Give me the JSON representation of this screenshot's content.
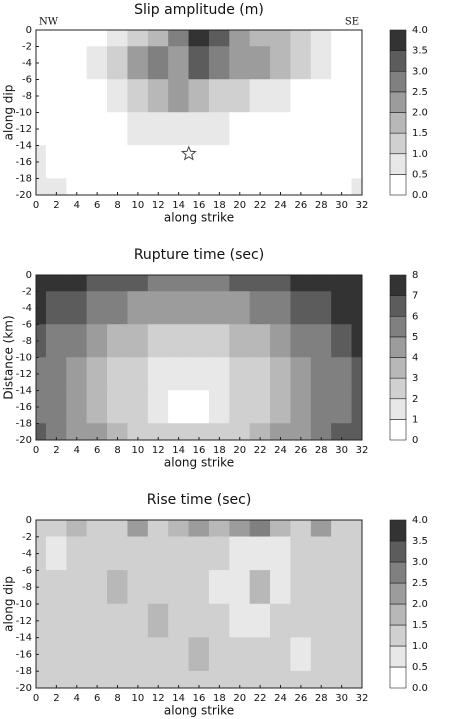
{
  "chart_data": [
    {
      "type": "contour",
      "title": "Slip amplitude (m)",
      "xlabel": "along strike",
      "ylabel": "along dip",
      "annotations": [
        "NW",
        "SE"
      ],
      "hypocenter": {
        "x": 15,
        "y": -15
      },
      "x": [
        0,
        2,
        4,
        6,
        8,
        10,
        12,
        14,
        16,
        18,
        20,
        22,
        24,
        26,
        28,
        30,
        32
      ],
      "y": [
        0,
        -4,
        -8,
        -12,
        -16,
        -20
      ],
      "z": [
        [
          0.3,
          0.2,
          0.2,
          0.4,
          0.6,
          1.0,
          1.5,
          2.5,
          3.5,
          3.0,
          2.0,
          1.5,
          1.5,
          1.0,
          0.6,
          0.4,
          0.3
        ],
        [
          0.2,
          0.2,
          0.3,
          0.6,
          1.0,
          2.0,
          2.5,
          2.0,
          3.0,
          2.5,
          2.0,
          2.0,
          1.5,
          1.0,
          0.5,
          0.3,
          0.2
        ],
        [
          0.1,
          0.1,
          0.2,
          0.3,
          0.6,
          1.0,
          1.5,
          2.0,
          1.5,
          1.0,
          1.0,
          0.8,
          0.5,
          0.3,
          0.2,
          0.1,
          0.1
        ],
        [
          0.1,
          0.1,
          0.1,
          0.2,
          0.3,
          0.6,
          0.6,
          0.6,
          0.8,
          0.6,
          0.4,
          0.3,
          0.2,
          0.1,
          0.1,
          0.1,
          0.1
        ],
        [
          0.6,
          0.2,
          0.1,
          0.1,
          0.1,
          0.2,
          0.3,
          0.2,
          0.2,
          0.1,
          0.1,
          0.1,
          0.1,
          0.1,
          0.1,
          0.1,
          0.1
        ],
        [
          0.6,
          0.6,
          0.3,
          0.1,
          0.1,
          0.1,
          0.1,
          0.1,
          0.1,
          0.1,
          0.1,
          0.1,
          0.1,
          0.1,
          0.1,
          0.2,
          0.6
        ]
      ],
      "xlim": [
        0,
        32
      ],
      "ylim": [
        -20,
        0
      ],
      "xticks": [
        0,
        2,
        4,
        6,
        8,
        10,
        12,
        14,
        16,
        18,
        20,
        22,
        24,
        26,
        28,
        30,
        32
      ],
      "yticks": [
        0,
        -2,
        -4,
        -6,
        -8,
        -10,
        -12,
        -14,
        -16,
        -18,
        -20
      ],
      "cticks": [
        {
          "value": 0,
          "label": "0.0"
        },
        {
          "value": 0.5,
          "label": "0.5"
        },
        {
          "value": 1,
          "label": "1.0"
        },
        {
          "value": 1.5,
          "label": "1.5"
        },
        {
          "value": 2,
          "label": "2.0"
        },
        {
          "value": 2.5,
          "label": "2.5"
        },
        {
          "value": 3,
          "label": "3.0"
        },
        {
          "value": 3.5,
          "label": "3.5"
        },
        {
          "value": 4,
          "label": "4.0"
        }
      ],
      "colors": [
        "#ffffff",
        "#e8e8e8",
        "#d0d0d0",
        "#b8b8b8",
        "#9c9c9c",
        "#808080",
        "#5c5c5c",
        "#333333"
      ]
    },
    {
      "type": "contour",
      "title": "Rupture time (sec)",
      "xlabel": "along strike",
      "ylabel": "Distance (km)",
      "x": [
        0,
        2,
        4,
        6,
        8,
        10,
        12,
        14,
        16,
        18,
        20,
        22,
        24,
        26,
        28,
        30,
        32
      ],
      "y": [
        0,
        -4,
        -8,
        -12,
        -16,
        -20
      ],
      "z": [
        [
          7.9,
          7.6,
          7.1,
          6.7,
          6.4,
          6.1,
          5.9,
          5.8,
          5.8,
          5.9,
          6.1,
          6.4,
          6.7,
          7.1,
          7.6,
          7.9,
          7.9
        ],
        [
          7.1,
          6.5,
          6.0,
          5.5,
          5.0,
          4.7,
          4.4,
          4.2,
          4.2,
          4.4,
          4.7,
          5.0,
          5.5,
          6.0,
          6.5,
          7.1,
          7.8
        ],
        [
          6.4,
          5.7,
          5.0,
          4.4,
          3.8,
          3.3,
          2.9,
          2.7,
          2.7,
          2.9,
          3.3,
          3.8,
          4.4,
          5.0,
          5.7,
          6.4,
          7.1
        ],
        [
          5.9,
          5.1,
          4.4,
          3.7,
          2.9,
          2.2,
          1.6,
          1.2,
          1.2,
          1.6,
          2.2,
          2.9,
          3.7,
          4.4,
          5.1,
          5.9,
          6.6
        ],
        [
          5.8,
          5.0,
          4.2,
          3.5,
          2.7,
          2.0,
          1.2,
          0.5,
          0.5,
          1.2,
          2.0,
          2.7,
          3.5,
          4.2,
          5.0,
          5.8,
          6.5
        ],
        [
          6.1,
          5.3,
          4.7,
          4.0,
          3.3,
          2.7,
          2.2,
          2.0,
          2.0,
          2.2,
          2.7,
          3.3,
          4.0,
          4.7,
          5.3,
          6.1,
          6.8
        ]
      ],
      "xlim": [
        0,
        32
      ],
      "ylim": [
        -20,
        0
      ],
      "xticks": [
        0,
        2,
        4,
        6,
        8,
        10,
        12,
        14,
        16,
        18,
        20,
        22,
        24,
        26,
        28,
        30,
        32
      ],
      "yticks": [
        0,
        -2,
        -4,
        -6,
        -8,
        -10,
        -12,
        -14,
        -16,
        -18,
        -20
      ],
      "cticks": [
        0,
        1,
        2,
        3,
        4,
        5,
        6,
        7,
        8
      ],
      "colors": [
        "#ffffff",
        "#e8e8e8",
        "#d0d0d0",
        "#b8b8b8",
        "#9c9c9c",
        "#808080",
        "#5c5c5c",
        "#333333"
      ]
    },
    {
      "type": "contour",
      "title": "Rise time (sec)",
      "xlabel": "along strike",
      "ylabel": "along dip",
      "x": [
        0,
        2,
        4,
        6,
        8,
        10,
        12,
        14,
        16,
        18,
        20,
        22,
        24,
        26,
        28,
        30,
        32
      ],
      "y": [
        0,
        -4,
        -8,
        -12,
        -16,
        -20
      ],
      "z": [
        [
          1.2,
          1.2,
          1.7,
          1.2,
          1.2,
          2.0,
          1.2,
          1.7,
          2.2,
          1.7,
          2.2,
          2.7,
          1.7,
          1.2,
          2.0,
          1.2,
          1.2
        ],
        [
          1.2,
          0.7,
          1.2,
          1.2,
          1.2,
          1.2,
          1.2,
          1.2,
          1.2,
          1.2,
          0.7,
          0.7,
          0.7,
          1.2,
          1.2,
          1.2,
          1.2
        ],
        [
          1.2,
          1.2,
          1.2,
          1.2,
          1.7,
          1.2,
          1.2,
          1.2,
          1.2,
          0.7,
          0.7,
          1.7,
          0.7,
          1.2,
          1.2,
          1.2,
          1.2
        ],
        [
          1.2,
          1.2,
          1.2,
          1.2,
          1.2,
          1.2,
          1.7,
          1.2,
          1.2,
          1.2,
          0.7,
          0.7,
          1.2,
          1.2,
          1.2,
          1.2,
          1.2
        ],
        [
          1.2,
          1.2,
          1.2,
          1.2,
          1.2,
          1.2,
          1.2,
          1.2,
          1.7,
          1.2,
          1.2,
          1.2,
          1.2,
          0.7,
          1.2,
          1.2,
          1.2
        ],
        [
          1.2,
          1.2,
          1.2,
          1.2,
          1.2,
          1.2,
          1.2,
          1.2,
          1.2,
          1.2,
          1.2,
          1.2,
          1.2,
          1.2,
          1.2,
          1.2,
          1.2
        ]
      ],
      "xlim": [
        0,
        32
      ],
      "ylim": [
        -20,
        0
      ],
      "xticks": [
        0,
        2,
        4,
        6,
        8,
        10,
        12,
        14,
        16,
        18,
        20,
        22,
        24,
        26,
        28,
        30,
        32
      ],
      "yticks": [
        0,
        -2,
        -4,
        -6,
        -8,
        -10,
        -12,
        -14,
        -16,
        -18,
        -20
      ],
      "cticks": [
        {
          "value": 0,
          "label": "0.0"
        },
        {
          "value": 0.5,
          "label": "0.5"
        },
        {
          "value": 1,
          "label": "1.0"
        },
        {
          "value": 1.5,
          "label": "1.5"
        },
        {
          "value": 2,
          "label": "2.0"
        },
        {
          "value": 2.5,
          "label": "2.5"
        },
        {
          "value": 3,
          "label": "3.0"
        },
        {
          "value": 3.5,
          "label": "3.5"
        },
        {
          "value": 4,
          "label": "4.0"
        }
      ],
      "colors": [
        "#ffffff",
        "#e8e8e8",
        "#d0d0d0",
        "#b8b8b8",
        "#9c9c9c",
        "#808080",
        "#5c5c5c",
        "#333333"
      ]
    }
  ]
}
